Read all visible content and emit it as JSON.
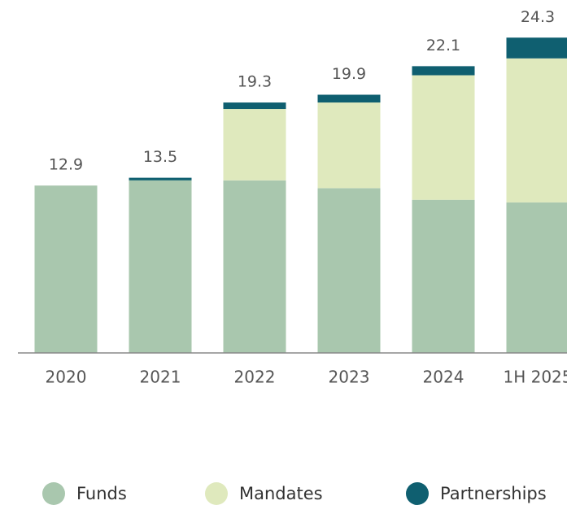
{
  "chart_data": {
    "type": "stacked-bar",
    "categories": [
      "2020",
      "2021",
      "2022",
      "2023",
      "2024",
      "1H 2025"
    ],
    "series": [
      {
        "name": "Funds",
        "color": "#a9c7ae",
        "values": [
          12.9,
          13.3,
          13.3,
          12.7,
          11.8,
          11.6
        ]
      },
      {
        "name": "Mandates",
        "color": "#dfe9bd",
        "values": [
          0,
          0,
          5.5,
          6.6,
          9.6,
          11.1
        ]
      },
      {
        "name": "Partnerships",
        "color": "#0f5f70",
        "values": [
          0,
          0.2,
          0.5,
          0.6,
          0.7,
          1.6
        ]
      }
    ],
    "totals": [
      12.9,
      13.5,
      19.3,
      19.9,
      22.1,
      24.3
    ],
    "ylim": [
      0,
      27.2
    ],
    "legend": "bottom"
  }
}
